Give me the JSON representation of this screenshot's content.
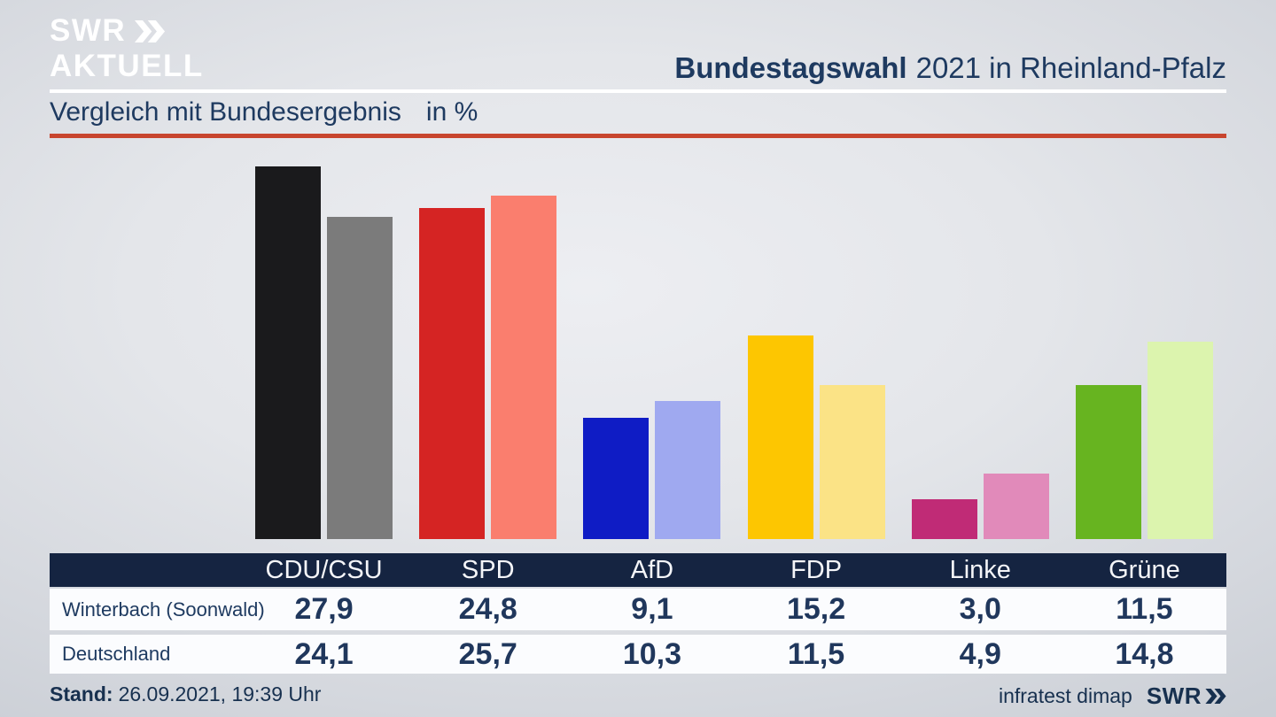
{
  "header": {
    "logo_line1": "SWR",
    "logo_line2": "AKTUELL",
    "title_bold": "Bundestagswahl",
    "title_rest": "2021 in Rheinland-Pfalz",
    "subtitle": "Vergleich mit Bundesergebnis",
    "subtitle_unit": "in %"
  },
  "chart_data": {
    "type": "bar",
    "title": "Vergleich mit Bundesergebnis in %",
    "categories": [
      "CDU/CSU",
      "SPD",
      "AfD",
      "FDP",
      "Linke",
      "Grüne"
    ],
    "series": [
      {
        "name": "Winterbach (Soonwald)",
        "values": [
          27.9,
          24.8,
          9.1,
          15.2,
          3.0,
          11.5
        ]
      },
      {
        "name": "Deutschland",
        "values": [
          24.1,
          25.7,
          10.3,
          11.5,
          4.9,
          14.8
        ]
      }
    ],
    "bar_colors": [
      [
        "#1a1a1c",
        "#7b7b7b"
      ],
      [
        "#d52423",
        "#fa7e6e"
      ],
      [
        "#0f1cc5",
        "#9fa9f0"
      ],
      [
        "#fdc601",
        "#fbe386"
      ],
      [
        "#c02b76",
        "#e18aba"
      ],
      [
        "#67b420",
        "#dcf4ae"
      ]
    ],
    "ylim": [
      0,
      30
    ],
    "grid": false,
    "legend_position": "table-rows",
    "unit": "%"
  },
  "table": {
    "rows": [
      {
        "label": "Winterbach (Soonwald)",
        "values": [
          "27,9",
          "24,8",
          "9,1",
          "15,2",
          "3,0",
          "11,5"
        ]
      },
      {
        "label": "Deutschland",
        "values": [
          "24,1",
          "25,7",
          "10,3",
          "11,5",
          "4,9",
          "14,8"
        ]
      }
    ]
  },
  "footer": {
    "stand_label": "Stand:",
    "stand_value": "26.09.2021, 19:39 Uhr",
    "source": "infratest dimap",
    "brand": "SWR"
  },
  "colors": {
    "accent_red_rule": "#c8452e",
    "navy_text": "#1e3a60",
    "table_header_bg": "#152441",
    "row_bg": "#fbfcfe"
  }
}
